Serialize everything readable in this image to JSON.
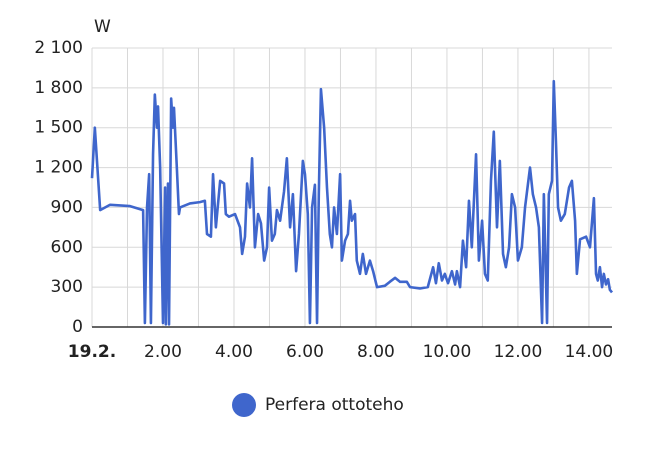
{
  "chart_data": {
    "type": "line",
    "y_label": "W",
    "xlim": [
      0,
      14.65
    ],
    "xticks": [
      {
        "value": 0,
        "label": "19.2."
      },
      {
        "value": 2,
        "label": "2.00"
      },
      {
        "value": 4,
        "label": "4.00"
      },
      {
        "value": 6,
        "label": "6.00"
      },
      {
        "value": 8,
        "label": "8.00"
      },
      {
        "value": 10,
        "label": "10.00"
      },
      {
        "value": 12,
        "label": "12.00"
      },
      {
        "value": 14,
        "label": "14.00"
      }
    ],
    "xgrid": [
      1,
      3,
      5,
      7,
      9,
      11,
      13
    ],
    "ylim": [
      0,
      2100
    ],
    "yticks": [
      0,
      300,
      600,
      900,
      {
        "value": 1200,
        "label": "1 200"
      },
      {
        "value": 1500,
        "label": "1 500"
      },
      {
        "value": 1800,
        "label": "1 800"
      },
      {
        "value": 2100,
        "label": "2 100"
      }
    ],
    "grid": true,
    "legend": "bottom",
    "x": [
      0,
      0.08,
      0.23,
      0.51,
      1.07,
      1.44,
      1.49,
      1.55,
      1.61,
      1.66,
      1.72,
      1.77,
      1.83,
      1.86,
      1.92,
      2.0,
      2.06,
      2.08,
      2.14,
      2.17,
      2.23,
      2.28,
      2.31,
      2.39,
      2.45,
      2.48,
      2.76,
      3.04,
      3.18,
      3.24,
      3.35,
      3.41,
      3.49,
      3.61,
      3.72,
      3.77,
      3.86,
      4.03,
      4.17,
      4.23,
      4.31,
      4.37,
      4.45,
      4.51,
      4.59,
      4.68,
      4.76,
      4.85,
      4.93,
      4.99,
      5.07,
      5.15,
      5.21,
      5.3,
      5.41,
      5.49,
      5.58,
      5.66,
      5.75,
      5.83,
      5.94,
      6.0,
      6.08,
      6.14,
      6.2,
      6.28,
      6.34,
      6.39,
      6.45,
      6.54,
      6.62,
      6.7,
      6.76,
      6.82,
      6.9,
      6.99,
      7.04,
      7.13,
      7.21,
      7.27,
      7.32,
      7.41,
      7.46,
      7.55,
      7.63,
      7.72,
      7.83,
      7.92,
      8.03,
      8.25,
      8.39,
      8.54,
      8.68,
      8.87,
      8.96,
      9.24,
      9.46,
      9.61,
      9.69,
      9.77,
      9.86,
      9.94,
      10.03,
      10.14,
      10.23,
      10.28,
      10.37,
      10.45,
      10.54,
      10.62,
      10.7,
      10.82,
      10.9,
      10.99,
      11.07,
      11.15,
      11.24,
      11.32,
      11.41,
      11.49,
      11.58,
      11.66,
      11.75,
      11.83,
      11.92,
      12.0,
      12.11,
      12.2,
      12.34,
      12.42,
      12.51,
      12.59,
      12.68,
      12.73,
      12.82,
      12.87,
      12.96,
      13.01,
      13.07,
      13.13,
      13.21,
      13.32,
      13.44,
      13.52,
      13.61,
      13.66,
      13.75,
      13.92,
      14.03,
      14.14,
      14.2,
      14.25,
      14.31,
      14.37,
      14.42,
      14.48,
      14.54,
      14.59,
      14.65
    ],
    "series": [
      {
        "name": "Perfera ottoteho",
        "color": "#3f66cc",
        "values": [
          1120,
          1500,
          880,
          920,
          910,
          880,
          30,
          900,
          1150,
          30,
          1300,
          1750,
          1500,
          1660,
          1200,
          30,
          1050,
          20,
          1080,
          20,
          1720,
          1500,
          1650,
          1200,
          850,
          900,
          930,
          940,
          950,
          700,
          680,
          1150,
          750,
          1100,
          1080,
          850,
          830,
          850,
          750,
          550,
          680,
          1080,
          900,
          1270,
          600,
          850,
          780,
          500,
          600,
          1050,
          650,
          700,
          880,
          800,
          1020,
          1270,
          750,
          1000,
          420,
          700,
          1250,
          1150,
          850,
          30,
          900,
          1070,
          30,
          1000,
          1790,
          1500,
          1050,
          700,
          600,
          900,
          700,
          1150,
          500,
          650,
          700,
          950,
          800,
          850,
          500,
          400,
          550,
          400,
          500,
          420,
          300,
          310,
          340,
          370,
          340,
          340,
          300,
          290,
          300,
          450,
          330,
          480,
          350,
          400,
          330,
          420,
          320,
          420,
          300,
          650,
          450,
          950,
          600,
          1300,
          500,
          800,
          400,
          350,
          1100,
          1470,
          750,
          1250,
          550,
          450,
          600,
          1000,
          900,
          500,
          600,
          900,
          1200,
          1000,
          900,
          750,
          30,
          1000,
          30,
          1000,
          1100,
          1850,
          1400,
          900,
          800,
          850,
          1050,
          1100,
          800,
          400,
          660,
          680,
          600,
          970,
          400,
          350,
          450,
          300,
          400,
          320,
          360,
          280,
          260
        ]
      }
    ]
  }
}
